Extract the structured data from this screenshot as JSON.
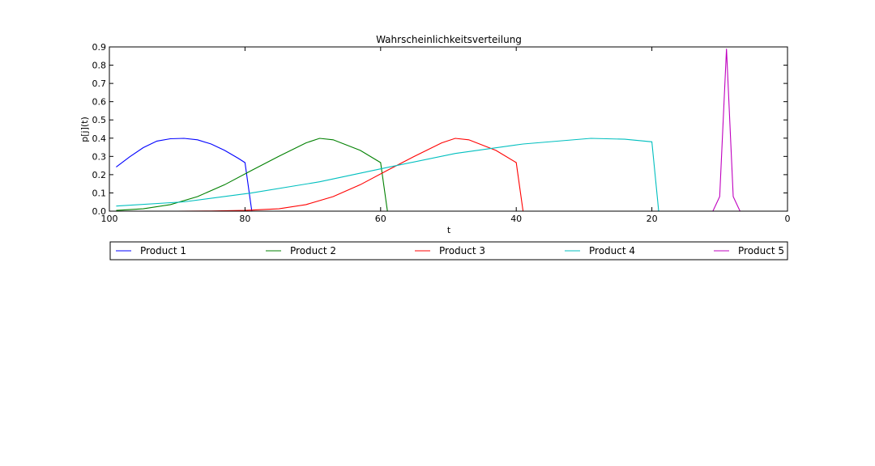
{
  "chart_data": {
    "type": "line",
    "title": "Wahrscheinlichkeitsverteilung",
    "xlabel": "t",
    "ylabel": "p[j](t)",
    "xlim": [
      100,
      0
    ],
    "ylim": [
      0,
      0.9
    ],
    "x_inverted": true,
    "xticks": [
      100,
      80,
      60,
      40,
      20,
      0
    ],
    "yticks": [
      0.0,
      0.1,
      0.2,
      0.3,
      0.4,
      0.5,
      0.6,
      0.7,
      0.8,
      0.9
    ],
    "xtick_labels": [
      "100",
      "80",
      "60",
      "40",
      "20",
      "0"
    ],
    "ytick_labels": [
      "0.0",
      "0.1",
      "0.2",
      "0.3",
      "0.4",
      "0.5",
      "0.6",
      "0.7",
      "0.8",
      "0.9"
    ],
    "grid": false,
    "legend_placement": "below the plot, single row",
    "series": [
      {
        "name": "Product 1",
        "color": "#0000ff",
        "x": [
          99,
          97,
          95,
          93,
          91,
          89,
          87,
          85,
          83,
          81,
          80,
          79,
          75,
          60,
          40,
          20,
          0
        ],
        "y": [
          0.242,
          0.298,
          0.348,
          0.384,
          0.397,
          0.399,
          0.391,
          0.368,
          0.333,
          0.29,
          0.266,
          0.0,
          0.0,
          0.0,
          0.0,
          0.0,
          0.0
        ]
      },
      {
        "name": "Product 2",
        "color": "#008000",
        "x": [
          99,
          95,
          91,
          87,
          83,
          79,
          75,
          71,
          69,
          67,
          63,
          60,
          59,
          40,
          20,
          0
        ],
        "y": [
          0.004,
          0.013,
          0.036,
          0.08,
          0.145,
          0.224,
          0.301,
          0.374,
          0.399,
          0.391,
          0.333,
          0.266,
          0.0,
          0.0,
          0.0,
          0.0
        ]
      },
      {
        "name": "Product 3",
        "color": "#ff0000",
        "x": [
          99,
          90,
          85,
          80,
          75,
          71,
          67,
          63,
          59,
          55,
          51,
          49,
          47,
          43,
          40,
          39,
          20,
          0
        ],
        "y": [
          0.0,
          0.0,
          0.001,
          0.004,
          0.013,
          0.036,
          0.08,
          0.145,
          0.224,
          0.301,
          0.374,
          0.399,
          0.391,
          0.333,
          0.266,
          0.0,
          0.0,
          0.0
        ]
      },
      {
        "name": "Product 4",
        "color": "#00bfbf",
        "x": [
          99,
          89,
          79,
          69,
          59,
          49,
          39,
          29,
          24,
          20,
          19,
          0
        ],
        "y": [
          0.028,
          0.051,
          0.1,
          0.161,
          0.24,
          0.316,
          0.368,
          0.399,
          0.394,
          0.38,
          0.0,
          0.0
        ]
      },
      {
        "name": "Product 5",
        "color": "#bf00bf",
        "x": [
          99,
          11,
          10,
          9,
          8,
          7,
          0
        ],
        "y": [
          0.0,
          0.0,
          0.08,
          0.89,
          0.08,
          0.0,
          0.0
        ]
      }
    ]
  }
}
